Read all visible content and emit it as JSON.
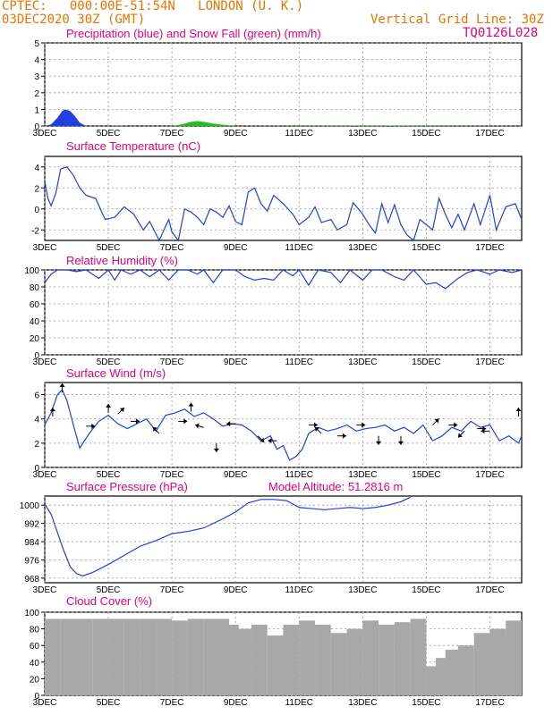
{
  "header": {
    "line1": "CPTEC:   000:00E-51:54N   LONDON (U. K.)",
    "line2": "03DEC2020 30Z (GMT)",
    "grid_note": "Vertical Grid Line: 30Z",
    "code": "TQ0126L028"
  },
  "colors": {
    "orange": "#e87400",
    "magenta": "#e6007e",
    "line": "#2040e0",
    "green": "#20c020",
    "gray": "#a8a8a8"
  },
  "x_ticks": [
    "3DEC",
    "5DEC",
    "7DEC",
    "9DEC",
    "11DEC",
    "13DEC",
    "15DEC",
    "17DEC"
  ],
  "chart_data": [
    {
      "type": "area",
      "title": "Precipitation (blue) and Snow Fall (green) (mm/h)",
      "ylim": [
        0,
        5
      ],
      "yticks": [
        0,
        1,
        2,
        3,
        4,
        5
      ],
      "series": [
        {
          "name": "Precipitation (blue)",
          "x": [
            3.0,
            3.2,
            3.4,
            3.55,
            3.65,
            3.8,
            3.95,
            4.1,
            4.3,
            5.2,
            5.4,
            7.5,
            7.9,
            8.5
          ],
          "values": [
            0,
            0.1,
            0.5,
            0.9,
            1.0,
            0.9,
            0.6,
            0.2,
            0,
            0,
            0,
            0,
            0,
            0
          ]
        },
        {
          "name": "Snow Fall (green)",
          "x": [
            5.1,
            5.3,
            5.5,
            7.0,
            7.3,
            7.6,
            7.8,
            8.0,
            8.3,
            8.6,
            9.0,
            14.0,
            15.0,
            18.0
          ],
          "values": [
            0,
            0.05,
            0,
            0,
            0.1,
            0.25,
            0.3,
            0.25,
            0.15,
            0.08,
            0,
            0.03,
            0.02,
            0
          ]
        }
      ]
    },
    {
      "type": "line",
      "title": "Surface Temperature (nC)",
      "ylim": [
        -3,
        5
      ],
      "yticks": [
        -2,
        0,
        2,
        4
      ],
      "x": [
        3.0,
        3.1,
        3.2,
        3.35,
        3.5,
        3.7,
        3.9,
        4.1,
        4.3,
        4.6,
        4.9,
        5.2,
        5.5,
        5.8,
        6.1,
        6.3,
        6.6,
        6.9,
        7.0,
        7.2,
        7.4,
        7.6,
        7.8,
        8.0,
        8.2,
        8.4,
        8.6,
        8.8,
        9.0,
        9.2,
        9.4,
        9.6,
        9.8,
        10.0,
        10.2,
        10.5,
        10.8,
        11.0,
        11.3,
        11.5,
        11.7,
        12.0,
        12.2,
        12.5,
        12.7,
        13.0,
        13.2,
        13.4,
        13.6,
        13.8,
        14.0,
        14.2,
        14.4,
        14.6,
        14.8,
        15.0,
        15.2,
        15.4,
        15.6,
        15.8,
        16.0,
        16.2,
        16.5,
        16.7,
        17.0,
        17.2,
        17.5,
        17.8,
        18.0
      ],
      "values": [
        2.6,
        1.0,
        0.3,
        1.5,
        3.8,
        4.0,
        3.2,
        2.0,
        1.3,
        1.0,
        -1.0,
        -0.8,
        0.2,
        -0.5,
        -2.0,
        -1.2,
        -3.0,
        -1.0,
        -2.2,
        -3.0,
        0.0,
        -0.3,
        -0.8,
        -1.5,
        0.0,
        -0.3,
        -0.8,
        0.3,
        -1.2,
        -1.5,
        1.6,
        2.0,
        0.5,
        -0.2,
        1.3,
        0.5,
        -0.5,
        -1.5,
        -0.8,
        0.2,
        -1.3,
        -1.0,
        -2.0,
        -1.5,
        0.6,
        -0.5,
        -1.5,
        -2.3,
        0.5,
        -1.3,
        0.4,
        -1.5,
        -2.5,
        -3.0,
        -1.0,
        -1.5,
        -2.0,
        1.0,
        -0.5,
        -1.8,
        -0.5,
        -2.0,
        0.5,
        -1.5,
        1.3,
        -2.0,
        0.2,
        0.5,
        -1.0
      ]
    },
    {
      "type": "line",
      "title": "Relative Humidity (%)",
      "ylim": [
        0,
        100
      ],
      "yticks": [
        0,
        20,
        40,
        60,
        80,
        100
      ],
      "x": [
        3.0,
        3.2,
        3.4,
        3.7,
        4.0,
        4.3,
        4.7,
        5.0,
        5.2,
        5.4,
        5.7,
        6.0,
        6.3,
        6.6,
        6.9,
        7.2,
        7.5,
        7.8,
        8.0,
        8.3,
        8.6,
        9.0,
        9.3,
        9.6,
        9.9,
        10.2,
        10.5,
        10.8,
        11.0,
        11.3,
        11.6,
        12.0,
        12.3,
        12.6,
        13.0,
        13.3,
        13.6,
        14.0,
        14.3,
        14.6,
        15.0,
        15.3,
        15.6,
        16.0,
        16.3,
        16.6,
        17.0,
        17.3,
        17.7,
        18.0
      ],
      "values": [
        85,
        95,
        100,
        100,
        98,
        100,
        90,
        100,
        88,
        100,
        95,
        100,
        92,
        100,
        88,
        100,
        100,
        95,
        100,
        85,
        100,
        100,
        92,
        88,
        90,
        88,
        100,
        93,
        100,
        82,
        100,
        97,
        85,
        100,
        88,
        100,
        100,
        92,
        88,
        100,
        83,
        85,
        78,
        90,
        97,
        100,
        95,
        100,
        97,
        100
      ]
    },
    {
      "type": "line",
      "title": "Surface Wind (m/s)",
      "ylim": [
        0,
        7
      ],
      "yticks": [
        0,
        2,
        4,
        6
      ],
      "x": [
        3.0,
        3.2,
        3.4,
        3.55,
        3.7,
        3.9,
        4.1,
        4.4,
        4.7,
        5.0,
        5.3,
        5.6,
        5.9,
        6.2,
        6.5,
        6.8,
        7.1,
        7.4,
        7.7,
        8.0,
        8.3,
        8.6,
        8.9,
        9.2,
        9.5,
        9.8,
        10.1,
        10.3,
        10.5,
        10.7,
        10.9,
        11.1,
        11.3,
        11.6,
        11.9,
        12.2,
        12.5,
        12.8,
        13.1,
        13.4,
        13.7,
        14.0,
        14.3,
        14.6,
        14.9,
        15.2,
        15.5,
        15.8,
        16.1,
        16.4,
        16.7,
        17.0,
        17.3,
        17.6,
        17.9,
        18.0
      ],
      "values": [
        3.5,
        4.5,
        6.0,
        6.4,
        5.5,
        3.5,
        1.6,
        2.8,
        3.8,
        4.3,
        3.6,
        3.2,
        3.6,
        4.0,
        3.0,
        4.3,
        4.5,
        4.8,
        4.2,
        4.5,
        4.0,
        3.4,
        3.6,
        3.5,
        3.0,
        2.2,
        2.6,
        1.5,
        1.8,
        0.6,
        0.9,
        1.5,
        2.8,
        3.3,
        3.0,
        3.2,
        3.5,
        3.0,
        3.2,
        3.3,
        3.5,
        3.0,
        3.3,
        2.8,
        3.5,
        2.2,
        2.6,
        3.3,
        3.0,
        3.8,
        3.3,
        3.5,
        2.2,
        2.6,
        2.0,
        2.6
      ],
      "vectors": [
        [
          3.25,
          4.2,
          0,
          1
        ],
        [
          3.55,
          6.2,
          0,
          1
        ],
        [
          4.3,
          3.4,
          1,
          0
        ],
        [
          5.0,
          4.5,
          0,
          1
        ],
        [
          5.3,
          4.4,
          1,
          1
        ],
        [
          5.7,
          3.8,
          1,
          0
        ],
        [
          6.6,
          2.8,
          -1,
          1
        ],
        [
          7.2,
          3.8,
          1,
          0
        ],
        [
          7.6,
          4.6,
          0,
          1
        ],
        [
          8.0,
          3.3,
          -1,
          0.3
        ],
        [
          8.4,
          2.0,
          0,
          -1
        ],
        [
          9.0,
          3.6,
          -1,
          0
        ],
        [
          9.7,
          2.6,
          1,
          -1
        ],
        [
          10.3,
          2.2,
          -1,
          0
        ],
        [
          11.3,
          3.5,
          1,
          0
        ],
        [
          11.7,
          2.8,
          -1,
          1
        ],
        [
          12.2,
          2.6,
          1,
          0
        ],
        [
          12.8,
          3.5,
          1,
          0
        ],
        [
          13.5,
          2.6,
          0,
          -1
        ],
        [
          14.2,
          2.6,
          0,
          -1
        ],
        [
          15.2,
          3.5,
          1,
          1
        ],
        [
          15.7,
          3.5,
          1,
          0
        ],
        [
          16.2,
          3.0,
          -1,
          -1
        ],
        [
          16.6,
          3.2,
          1,
          0
        ],
        [
          17.0,
          3.0,
          -1,
          0
        ],
        [
          17.9,
          4.2,
          0,
          1
        ]
      ]
    },
    {
      "type": "line",
      "title": "Surface Pressure (hPa)",
      "annotation": "Model Altitude: 51.2816 m",
      "ylim": [
        966,
        1004
      ],
      "yticks": [
        968,
        976,
        984,
        992,
        1000
      ],
      "x": [
        3.0,
        3.2,
        3.4,
        3.6,
        3.8,
        4.0,
        4.2,
        4.5,
        5.0,
        5.5,
        6.0,
        6.5,
        7.0,
        7.5,
        8.0,
        8.3,
        8.6,
        9.0,
        9.4,
        9.8,
        10.2,
        10.6,
        11.0,
        11.4,
        11.8,
        12.2,
        12.6,
        13.0,
        13.4,
        13.8,
        14.2,
        14.5
      ],
      "values": [
        1000.5,
        996,
        988,
        980,
        973,
        970,
        969,
        970.5,
        974,
        978,
        982,
        984.5,
        987.5,
        988.5,
        990,
        992,
        994,
        997,
        1001,
        1002.5,
        1002.5,
        1002,
        999,
        998.5,
        998,
        998.5,
        999,
        998.5,
        999,
        1000,
        1001.5,
        1003.5
      ]
    },
    {
      "type": "bar",
      "title": "Cloud Cover (%)",
      "ylim": [
        0,
        100
      ],
      "yticks": [
        0,
        20,
        40,
        60,
        80,
        100
      ],
      "x": [
        3.0,
        3.5,
        4.0,
        4.5,
        5.0,
        5.5,
        6.0,
        6.5,
        7.0,
        7.5,
        8.0,
        8.3,
        8.6,
        9.0,
        9.5,
        10.0,
        10.5,
        11.0,
        11.5,
        12.0,
        12.5,
        13.0,
        13.5,
        14.0,
        14.5,
        15.0,
        15.3,
        15.6,
        16.0,
        16.5,
        17.0,
        17.5,
        18.0
      ],
      "values": [
        92,
        92,
        92,
        92,
        92,
        92,
        92,
        92,
        90,
        92,
        92,
        92,
        85,
        80,
        85,
        72,
        85,
        90,
        85,
        75,
        80,
        90,
        85,
        88,
        92,
        35,
        45,
        55,
        60,
        75,
        80,
        75,
        90
      ]
    }
  ]
}
